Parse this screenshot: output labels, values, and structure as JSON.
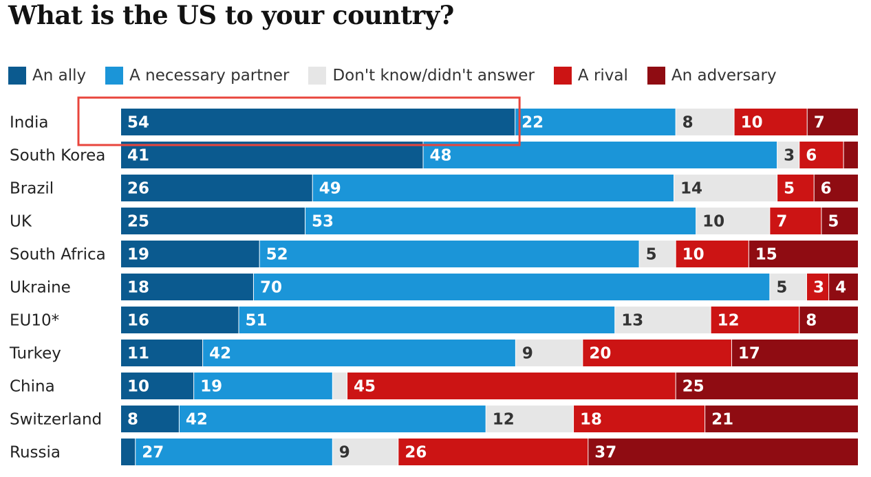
{
  "title": "What is the US to your country?",
  "legend": [
    {
      "label": "An ally",
      "color": "#0b5a8f"
    },
    {
      "label": "A necessary partner",
      "color": "#1b95d8"
    },
    {
      "label": "Don't know/didn't answer",
      "color": "#e6e6e6"
    },
    {
      "label": "A rival",
      "color": "#cc1414"
    },
    {
      "label": "An adversary",
      "color": "#8f0c12"
    }
  ],
  "chart_data": {
    "type": "bar",
    "orientation": "horizontal",
    "stacked": true,
    "title": "What is the US to your country?",
    "categories": [
      "India",
      "South Korea",
      "Brazil",
      "UK",
      "South Africa",
      "Ukraine",
      "EU10*",
      "Turkey",
      "China",
      "Switzerland",
      "Russia"
    ],
    "series": [
      {
        "name": "An ally",
        "color": "#0b5a8f",
        "values": [
          54,
          41,
          26,
          25,
          19,
          18,
          16,
          11,
          10,
          8,
          2
        ]
      },
      {
        "name": "A necessary partner",
        "color": "#1b95d8",
        "values": [
          22,
          48,
          49,
          53,
          52,
          70,
          51,
          42,
          19,
          42,
          27
        ]
      },
      {
        "name": "Don't know/didn't answer",
        "color": "#e6e6e6",
        "values": [
          8,
          3,
          14,
          10,
          5,
          5,
          13,
          9,
          2,
          12,
          9
        ]
      },
      {
        "name": "A rival",
        "color": "#cc1414",
        "values": [
          10,
          6,
          5,
          7,
          10,
          3,
          12,
          20,
          45,
          18,
          26
        ]
      },
      {
        "name": "An adversary",
        "color": "#8f0c12",
        "values": [
          7,
          2,
          6,
          5,
          15,
          4,
          8,
          17,
          25,
          21,
          37
        ]
      }
    ],
    "labels": [
      [
        "54",
        "22",
        "8",
        "10",
        "7"
      ],
      [
        "41",
        "48",
        "3",
        "6",
        ""
      ],
      [
        "26",
        "49",
        "14",
        "5",
        "6"
      ],
      [
        "25",
        "53",
        "10",
        "7",
        "5"
      ],
      [
        "19",
        "52",
        "5",
        "10",
        "15"
      ],
      [
        "18",
        "70",
        "5",
        "3",
        "4"
      ],
      [
        "16",
        "51",
        "13",
        "12",
        "8"
      ],
      [
        "11",
        "42",
        "9",
        "20",
        "17"
      ],
      [
        "10",
        "19",
        "",
        "45",
        "25"
      ],
      [
        "8",
        "42",
        "12",
        "18",
        "21"
      ],
      [
        "",
        "27",
        "9",
        "26",
        "37"
      ]
    ],
    "highlight": {
      "row": 0,
      "series": 0,
      "color": "#e8453c"
    },
    "legend_position": "top-left",
    "grid": false
  }
}
